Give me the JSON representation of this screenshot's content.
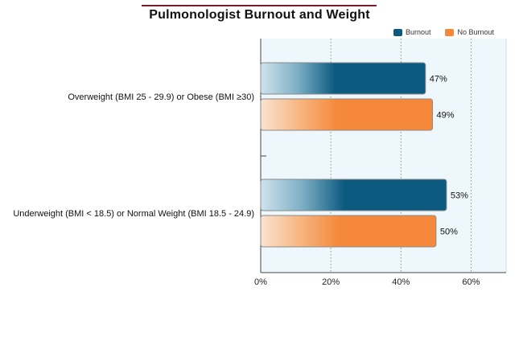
{
  "chart_data": {
    "type": "bar",
    "orientation": "horizontal",
    "title": "Pulmonologist Burnout and Weight",
    "categories": [
      "Overweight (BMI 25 - 29.9) or Obese (BMI ≥30)",
      "Underweight (BMI < 18.5) or Normal Weight (BMI 18.5 - 24.9)"
    ],
    "series": [
      {
        "name": "Burnout",
        "values": [
          47,
          53
        ],
        "labels": [
          "47%",
          "53%"
        ],
        "color": "#0d5a80"
      },
      {
        "name": "No Burnout",
        "values": [
          49,
          50
        ],
        "labels": [
          "49%",
          "50%"
        ],
        "color": "#f5883a"
      }
    ],
    "xlim": [
      0,
      70
    ],
    "xticks": [
      0,
      20,
      40,
      60
    ],
    "xtick_labels": [
      "0%",
      "20%",
      "40%",
      "60%"
    ],
    "grid": "vertical dotted",
    "legend_position": "top-right",
    "plot_background": "#eef7fc"
  }
}
